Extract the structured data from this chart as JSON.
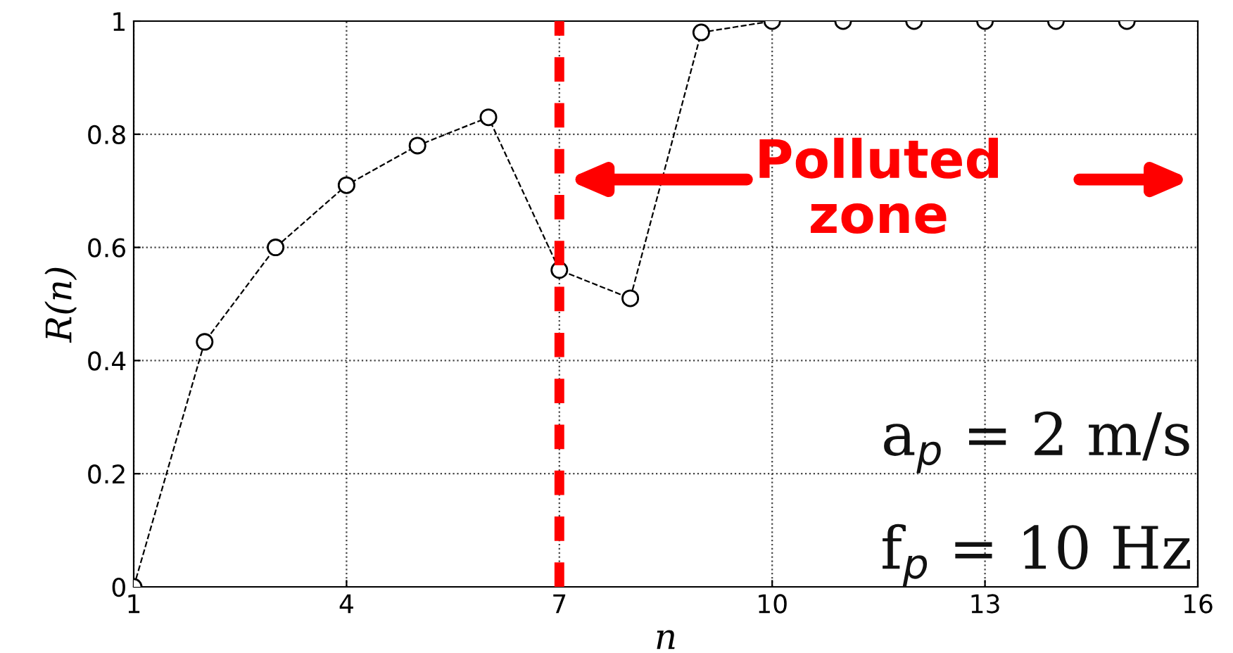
{
  "chart_data": {
    "type": "line",
    "xlabel": "n",
    "ylabel": "R(n)",
    "x": [
      1,
      2,
      3,
      4,
      5,
      6,
      7,
      8,
      9,
      10,
      11,
      12,
      13,
      14,
      15
    ],
    "values": [
      0,
      0.433,
      0.6,
      0.71,
      0.78,
      0.83,
      0.56,
      0.51,
      0.98,
      1,
      1,
      1,
      1,
      1,
      1
    ],
    "color": "#000000",
    "marker": "circle",
    "line_style": "dashed",
    "grid": true,
    "xlim": [
      1,
      16
    ],
    "xticks": [
      1,
      4,
      7,
      10,
      13,
      16
    ],
    "ylim": [
      0,
      1
    ],
    "yticks": [
      0,
      0.2,
      0.4,
      0.6,
      0.8,
      1
    ],
    "ref_lines": [
      {
        "axis": "x",
        "value": 7,
        "color": "#ff0000",
        "line_style": "dashed"
      }
    ],
    "annotations": [
      "Polluted\nzone",
      "a$_{p}$ = 2 m/s",
      "f$_{p}$ = 10 Hz"
    ]
  }
}
